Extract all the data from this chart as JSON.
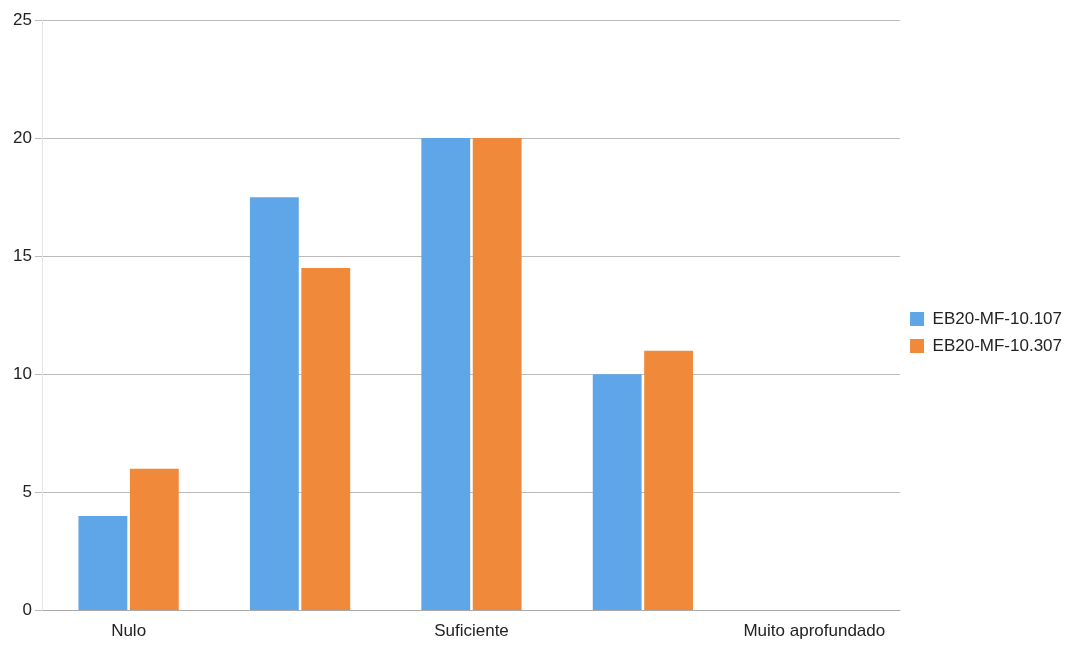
{
  "chart_data": {
    "type": "bar",
    "categories": [
      "Nulo",
      null,
      "Suficiente",
      null,
      "Muito aprofundado"
    ],
    "series": [
      {
        "name": "EB20-MF-10.107",
        "color": "#5fa6e8",
        "values": [
          4,
          17.5,
          20,
          10,
          0
        ]
      },
      {
        "name": "EB20-MF-10.307",
        "color": "#f08a3a",
        "values": [
          6,
          14.5,
          20,
          11,
          0
        ]
      }
    ],
    "ylim": [
      0,
      25
    ],
    "yticks": [
      0,
      5,
      10,
      15,
      20,
      25
    ],
    "grid": "y",
    "legend": "right"
  }
}
